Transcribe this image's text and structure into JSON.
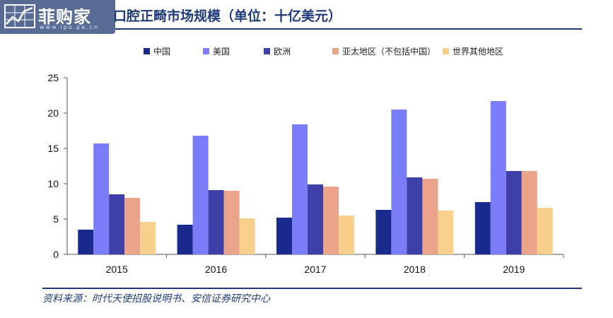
{
  "logo": {
    "text": "菲购家",
    "url": "www.ipo.pa.cn"
  },
  "title": "口腔正畸市场规模（单位：十亿美元）",
  "source": "资料来源：时代天使招股说明书、安信证券研究中心",
  "colors": {
    "title": "#1f3a78",
    "rule": "#1f3a78"
  },
  "chart_data": {
    "type": "bar",
    "categories": [
      "2015",
      "2016",
      "2017",
      "2018",
      "2019"
    ],
    "ylim": [
      0,
      25
    ],
    "yticks": [
      0,
      5,
      10,
      15,
      20,
      25
    ],
    "legend_position": "top",
    "grid": false,
    "series": [
      {
        "name": "中国",
        "color": "#1a2a8c",
        "values": [
          3.5,
          4.2,
          5.2,
          6.3,
          7.4
        ]
      },
      {
        "name": "美国",
        "color": "#7b7cf7",
        "values": [
          15.7,
          16.8,
          18.4,
          20.5,
          21.7
        ]
      },
      {
        "name": "欧洲",
        "color": "#3f3fa8",
        "values": [
          8.5,
          9.1,
          9.9,
          10.9,
          11.8
        ]
      },
      {
        "name": "亚太地区（不包括中国）",
        "color": "#e9a48a",
        "values": [
          8.0,
          9.0,
          9.6,
          10.7,
          11.8
        ]
      },
      {
        "name": "世界其他地区",
        "color": "#f9d08b",
        "values": [
          4.6,
          5.1,
          5.5,
          6.2,
          6.6
        ]
      }
    ]
  }
}
